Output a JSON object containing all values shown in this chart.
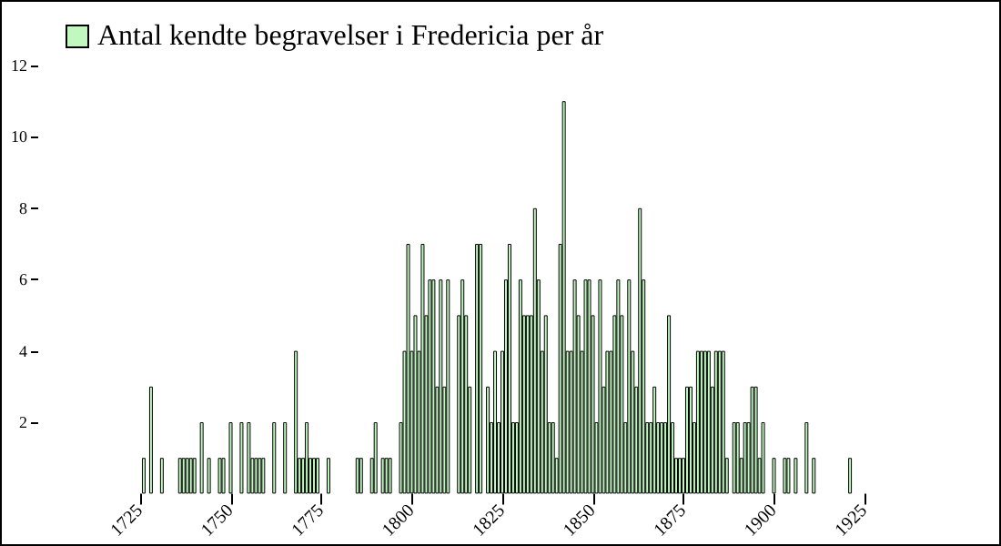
{
  "chart_data": {
    "type": "bar",
    "x": [
      1726,
      1728,
      1731,
      1736,
      1737,
      1738,
      1739,
      1740,
      1742,
      1744,
      1747,
      1748,
      1750,
      1753,
      1755,
      1756,
      1757,
      1758,
      1759,
      1762,
      1765,
      1768,
      1769,
      1770,
      1771,
      1772,
      1773,
      1774,
      1777,
      1785,
      1786,
      1789,
      1790,
      1792,
      1793,
      1794,
      1797,
      1798,
      1799,
      1800,
      1801,
      1802,
      1803,
      1804,
      1805,
      1806,
      1807,
      1808,
      1809,
      1810,
      1813,
      1814,
      1815,
      1816,
      1818,
      1819,
      1821,
      1822,
      1823,
      1824,
      1825,
      1826,
      1827,
      1828,
      1829,
      1830,
      1831,
      1832,
      1833,
      1834,
      1835,
      1836,
      1837,
      1838,
      1839,
      1840,
      1841,
      1842,
      1843,
      1844,
      1845,
      1846,
      1847,
      1848,
      1849,
      1850,
      1851,
      1852,
      1853,
      1854,
      1855,
      1856,
      1857,
      1858,
      1859,
      1860,
      1861,
      1862,
      1863,
      1864,
      1865,
      1866,
      1867,
      1868,
      1869,
      1870,
      1871,
      1872,
      1873,
      1874,
      1875,
      1876,
      1877,
      1878,
      1879,
      1880,
      1881,
      1882,
      1883,
      1884,
      1885,
      1886,
      1887,
      1889,
      1890,
      1891,
      1892,
      1893,
      1894,
      1895,
      1896,
      1897,
      1900,
      1903,
      1904,
      1906,
      1909,
      1911,
      1921
    ],
    "series": [
      {
        "name": "Antal kendte begravelser i Fredericia per år",
        "color": "#c0f8c0",
        "values": [
          1,
          3,
          1,
          1,
          1,
          1,
          1,
          1,
          2,
          1,
          1,
          1,
          2,
          2,
          2,
          1,
          1,
          1,
          1,
          2,
          2,
          4,
          1,
          1,
          2,
          1,
          1,
          1,
          1,
          1,
          1,
          1,
          2,
          1,
          1,
          1,
          2,
          4,
          7,
          4,
          5,
          4,
          7,
          5,
          6,
          6,
          3,
          6,
          3,
          6,
          5,
          6,
          5,
          3,
          7,
          7,
          3,
          2,
          4,
          2,
          4,
          6,
          7,
          2,
          2,
          6,
          5,
          5,
          5,
          8,
          6,
          4,
          5,
          2,
          2,
          1,
          7,
          11,
          4,
          4,
          6,
          5,
          4,
          6,
          6,
          5,
          2,
          6,
          3,
          4,
          4,
          5,
          6,
          5,
          2,
          6,
          4,
          3,
          8,
          6,
          2,
          2,
          3,
          2,
          2,
          2,
          5,
          2,
          1,
          1,
          1,
          3,
          3,
          2,
          4,
          4,
          4,
          4,
          3,
          4,
          4,
          4,
          1,
          2,
          2,
          1,
          2,
          2,
          3,
          3,
          1,
          2,
          1,
          1,
          1,
          1,
          2,
          1,
          1
        ]
      }
    ],
    "xlim": [
      1725,
      1925
    ],
    "xticks": [
      1725,
      1750,
      1775,
      1800,
      1825,
      1850,
      1875,
      1900,
      1925
    ],
    "ylim": [
      0,
      12
    ],
    "yticks": [
      2,
      4,
      6,
      8,
      10,
      12
    ],
    "grid": false,
    "legend": "top left"
  }
}
